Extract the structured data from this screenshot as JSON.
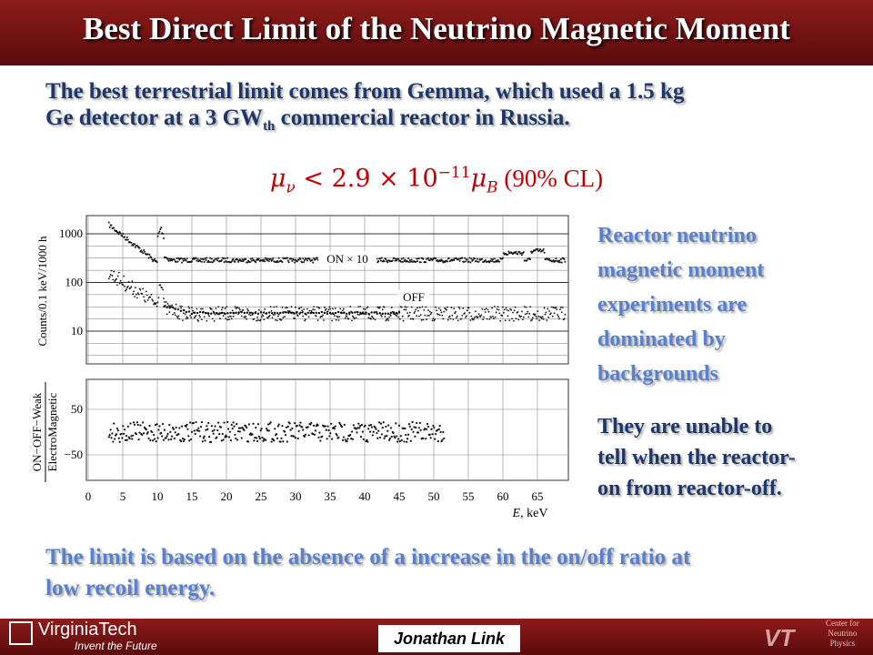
{
  "header": {
    "title": "Best Direct Limit of the Neutrino Magnetic Moment"
  },
  "intro": {
    "line1": "The best terrestrial limit comes from Gemma, which used a 1.5 kg",
    "line2a": "Ge detector at a 3 GW",
    "line2sub": "th",
    "line2b": " commercial reactor in Russia."
  },
  "formula": {
    "mu1": "μ",
    "sub1": "ν",
    "mid": " < 2.9 × 10",
    "exp": "−11",
    "mu2": "μ",
    "sub2": "B",
    "cl": " (90% CL)"
  },
  "figure": {
    "ylabel_top": "Counts/0.1 keV/1000 h",
    "ylabel_bottom1": "ON−OFF−Weak",
    "ylabel_bottom2": "ElectroMagnetic",
    "on_label": "ON × 10",
    "off_label": "OFF",
    "top_yticks": [
      1000,
      100,
      10
    ],
    "bottom_yticks": [
      50,
      {
        "value": -50,
        "label": "−50"
      }
    ],
    "xticks": [
      0,
      5,
      10,
      15,
      20,
      25,
      30,
      35,
      40,
      45,
      50,
      55,
      60,
      65
    ],
    "xlabel_italic": "E",
    "xlabel_rest": ", keV"
  },
  "side": {
    "para1": [
      "Reactor neutrino",
      "magnetic moment",
      "experiments are",
      "dominated by",
      "backgrounds"
    ],
    "para2": [
      "They are unable to",
      "tell when the reactor-",
      "on from reactor-off."
    ]
  },
  "conclusion": [
    "The limit is based on the absence of a increase in the on/off ratio at",
    "low recoil energy."
  ],
  "footer": {
    "university": "VirginiaTech",
    "tagline": "Invent the Future",
    "author": "Jonathan Link",
    "center": [
      "Center for",
      "Neutrino",
      "Physics"
    ]
  }
}
